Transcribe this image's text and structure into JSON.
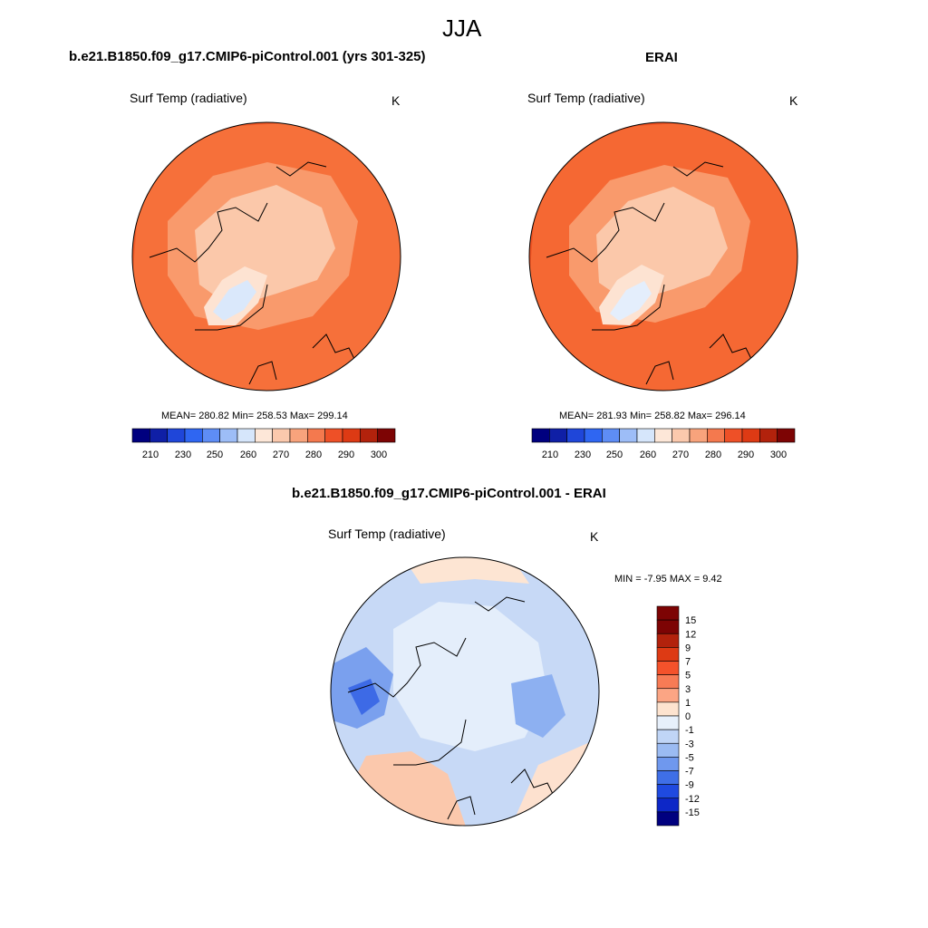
{
  "header": {
    "season": "JJA"
  },
  "panels": [
    {
      "title": "b.e21.B1850.f09_g17.CMIP6-piControl.001 (yrs 301-325)",
      "variable": "Surf Temp (radiative)",
      "units": "K",
      "stats": "MEAN= 280.82  Min= 258.53  Max= 299.14"
    },
    {
      "title": "ERAI",
      "variable": "Surf Temp (radiative)",
      "units": "K",
      "stats": "MEAN= 281.93  Min= 258.82  Max= 296.14"
    },
    {
      "title": "b.e21.B1850.f09_g17.CMIP6-piControl.001 - ERAI",
      "variable": "Surf Temp (radiative)",
      "units": "K",
      "stats": "MIN =  -7.95 MAX =   9.42"
    }
  ],
  "abs_colorbar": {
    "colors": [
      "#00007f",
      "#0f1fa6",
      "#1f46d9",
      "#2f66f2",
      "#5e8df5",
      "#9dbdf7",
      "#d6e6fb",
      "#fde7d8",
      "#fbc9ad",
      "#f8a37c",
      "#f4794e",
      "#ee5027",
      "#dd3a14",
      "#b2220c",
      "#7d0404"
    ],
    "labels": [
      "210",
      "230",
      "250",
      "260",
      "270",
      "280",
      "290",
      "300"
    ]
  },
  "diff_colorbar": {
    "colors": [
      "#7d0404",
      "#b2220c",
      "#dd3a14",
      "#f4522b",
      "#f77b55",
      "#fba584",
      "#fde3cf",
      "#e7f0fb",
      "#c0d5f6",
      "#9bbbf2",
      "#6f98ee",
      "#3f6fe7",
      "#1f4ae0",
      "#0d27c7",
      "#00007f"
    ],
    "labels": [
      "15",
      "12",
      "9",
      "7",
      "5",
      "3",
      "1",
      "0",
      "-1",
      "-3",
      "-5",
      "-7",
      "-9",
      "-12",
      "-15"
    ]
  }
}
